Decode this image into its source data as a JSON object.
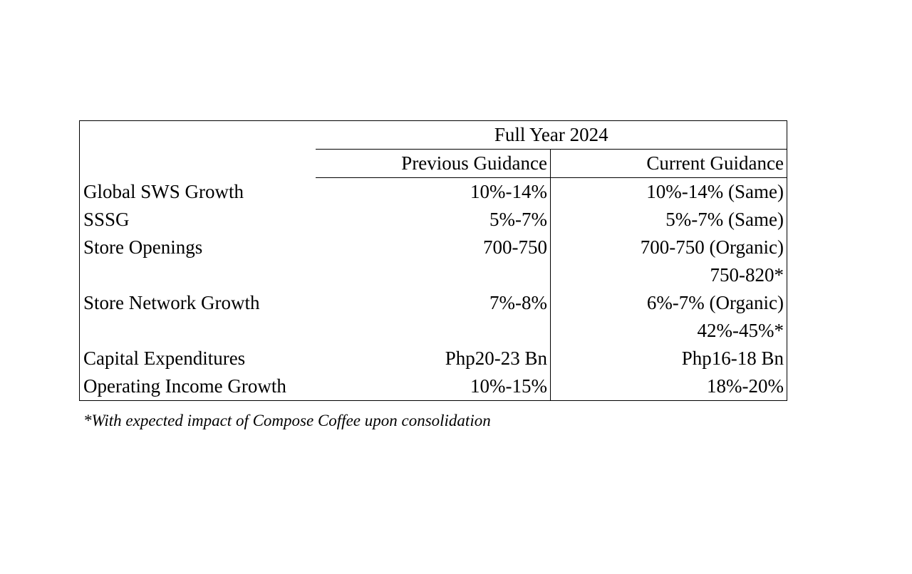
{
  "table": {
    "period_header": "Full Year 2024",
    "columns": [
      "Previous Guidance",
      "Current Guidance"
    ],
    "rows": [
      {
        "metric": "Global SWS Growth",
        "previous": "10%-14%",
        "current": "10%-14% (Same)"
      },
      {
        "metric": "SSSG",
        "previous": "5%-7%",
        "current": "5%-7% (Same)"
      },
      {
        "metric": "Store Openings",
        "previous": "700-750",
        "current": "700-750 (Organic)"
      },
      {
        "metric": "",
        "previous": "",
        "current": "750-820*"
      },
      {
        "metric": "Store Network Growth",
        "previous": "7%-8%",
        "current": "6%-7% (Organic)"
      },
      {
        "metric": "",
        "previous": "",
        "current": "42%-45%*"
      },
      {
        "metric": "Capital Expenditures",
        "previous": "Php20-23 Bn",
        "current": "Php16-18 Bn"
      },
      {
        "metric": "Operating Income Growth",
        "previous": "10%-15%",
        "current": "18%-20%"
      }
    ]
  },
  "footnote": "*With expected impact of Compose Coffee upon consolidation"
}
